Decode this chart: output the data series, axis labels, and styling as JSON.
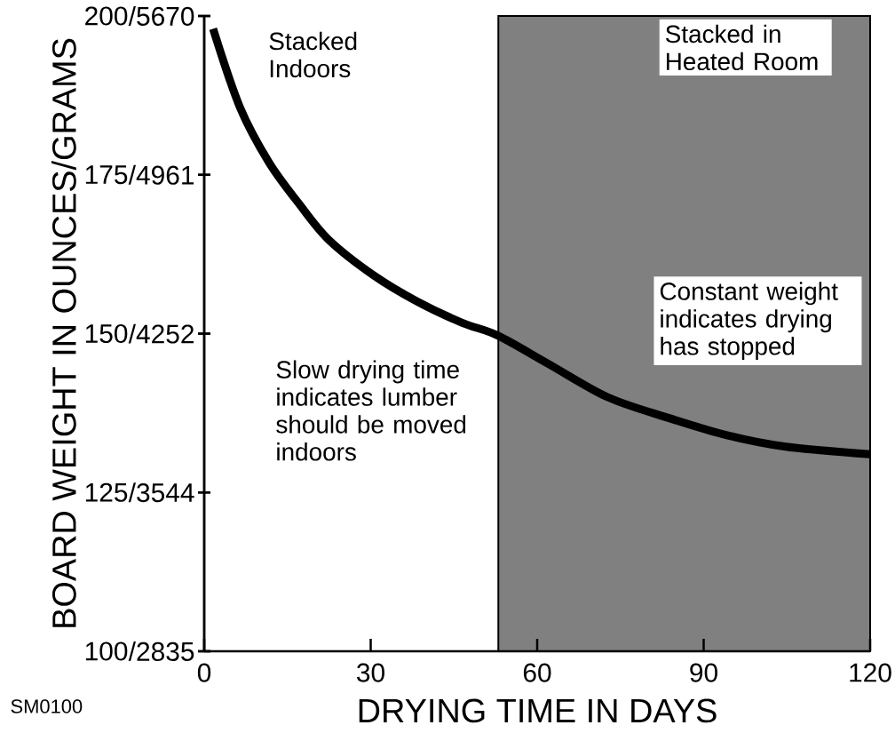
{
  "chart_data": {
    "type": "line",
    "xlabel": "DRYING TIME IN DAYS",
    "ylabel": "BOARD WEIGHT IN OUNCES/GRAMS",
    "x": [
      1.6,
      6.4,
      11.7,
      17.2,
      22.4,
      30.5,
      38.5,
      46.5,
      52.9,
      62.1,
      72.7,
      83.4,
      94.2,
      104.8,
      120
    ],
    "series": [
      {
        "color": "#000000",
        "values": [
          198.0,
          185.7,
          176.9,
          170.3,
          164.8,
          159.2,
          155.0,
          151.7,
          149.7,
          145.2,
          140.0,
          136.8,
          134.0,
          132.2,
          131.0
        ]
      }
    ],
    "xlim": [
      0,
      120
    ],
    "ylim": [
      100,
      200
    ],
    "xticks": [
      0,
      30,
      60,
      90,
      120
    ],
    "yticks": [
      100,
      125,
      150,
      175,
      200
    ],
    "y2lim": [
      2835,
      5670
    ],
    "y2ticks": [
      {
        "value": 2835,
        "label": "/2835"
      },
      {
        "value": 3544,
        "label": "/3544"
      },
      {
        "value": 4252,
        "label": "/4252"
      },
      {
        "value": 4961,
        "label": "/4961"
      },
      {
        "value": 5670,
        "label": "/5670"
      }
    ],
    "bands": [
      {
        "axis": "x",
        "from": 53,
        "to": 120,
        "label": "Stacked in Heated Room",
        "color": "#808080"
      }
    ],
    "annotations": [
      "Stacked Indoors",
      "Slow drying time indicates lumber should be moved indoors",
      "Constant weight indicates drying has stopped",
      "SM0100"
    ],
    "grid": false
  }
}
